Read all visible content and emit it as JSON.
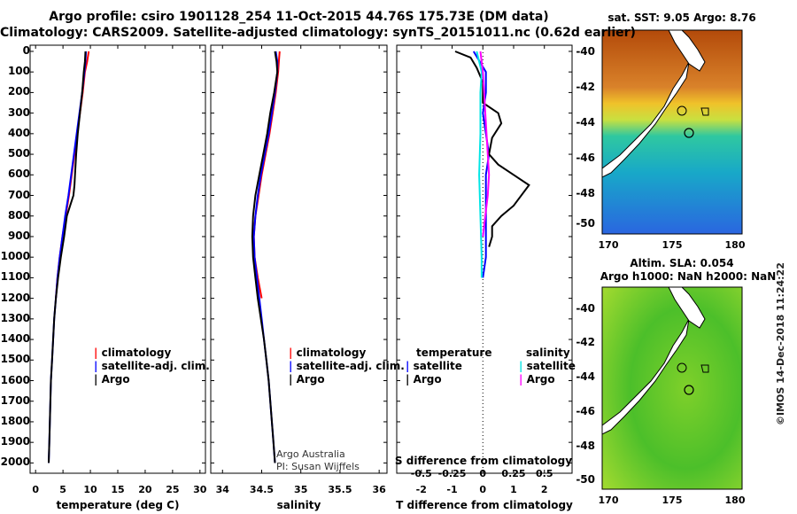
{
  "title": {
    "line1": "Argo profile: csiro 1901128_254 11-Oct-2015 44.76S 175.73E (DM data)",
    "line2": "Climatology: CARS2009. Satellite-adjusted climatology: synTS_20151011.nc (0.62d earlier)"
  },
  "colors": {
    "climatology": "#ff0000",
    "satellite": "#0000ff",
    "argo": "#000000",
    "sal_satellite": "#00e5e5",
    "sal_argo": "#ff00ff"
  },
  "depth_ticks": [
    0,
    100,
    200,
    300,
    400,
    500,
    600,
    700,
    800,
    900,
    1000,
    1100,
    1200,
    1300,
    1400,
    1500,
    1600,
    1700,
    1800,
    1900,
    2000
  ],
  "chart_data": [
    {
      "type": "line",
      "xlabel": "temperature (deg C)",
      "xticks": [
        0,
        5,
        10,
        15,
        20,
        25,
        30
      ],
      "xlim": [
        -1,
        31
      ],
      "ylim": [
        2050,
        0
      ],
      "legend": [
        "climatology",
        "satellite-adj. clim.",
        "Argo"
      ],
      "series": [
        {
          "name": "climatology",
          "points": [
            [
              9.7,
              0
            ],
            [
              9.4,
              50
            ],
            [
              9.0,
              100
            ],
            [
              8.6,
              200
            ],
            [
              8.1,
              300
            ],
            [
              7.6,
              400
            ],
            [
              7.1,
              500
            ],
            [
              6.6,
              600
            ],
            [
              6.1,
              700
            ],
            [
              5.5,
              800
            ],
            [
              4.9,
              900
            ],
            [
              4.4,
              1000
            ],
            [
              4.0,
              1100
            ],
            [
              3.7,
              1200
            ]
          ]
        },
        {
          "name": "satellite-adj. clim.",
          "points": [
            [
              9.2,
              0
            ],
            [
              9.1,
              50
            ],
            [
              8.9,
              100
            ],
            [
              8.5,
              200
            ],
            [
              8.0,
              300
            ],
            [
              7.5,
              400
            ],
            [
              7.0,
              500
            ],
            [
              6.5,
              600
            ],
            [
              6.0,
              700
            ],
            [
              5.4,
              800
            ],
            [
              4.9,
              900
            ],
            [
              4.4,
              1000
            ],
            [
              4.0,
              1100
            ],
            [
              3.7,
              1200
            ],
            [
              3.4,
              1300
            ],
            [
              3.2,
              1400
            ],
            [
              3.0,
              1500
            ],
            [
              2.8,
              1600
            ],
            [
              2.7,
              1700
            ],
            [
              2.6,
              1800
            ],
            [
              2.5,
              1900
            ],
            [
              2.4,
              2000
            ]
          ]
        },
        {
          "name": "Argo",
          "points": [
            [
              9.1,
              0
            ],
            [
              9.0,
              50
            ],
            [
              8.8,
              100
            ],
            [
              8.5,
              200
            ],
            [
              8.1,
              300
            ],
            [
              7.7,
              400
            ],
            [
              7.4,
              500
            ],
            [
              7.2,
              600
            ],
            [
              7.1,
              650
            ],
            [
              6.9,
              700
            ],
            [
              6.3,
              750
            ],
            [
              5.7,
              800
            ],
            [
              5.2,
              900
            ],
            [
              4.6,
              1000
            ],
            [
              4.1,
              1100
            ],
            [
              3.7,
              1200
            ],
            [
              3.4,
              1300
            ],
            [
              3.2,
              1400
            ],
            [
              3.0,
              1500
            ],
            [
              2.8,
              1600
            ],
            [
              2.7,
              1700
            ],
            [
              2.6,
              1800
            ],
            [
              2.5,
              1900
            ],
            [
              2.4,
              2000
            ]
          ]
        }
      ]
    },
    {
      "type": "line",
      "xlabel": "salinity",
      "xticks": [
        34,
        34.5,
        35,
        35.5,
        36
      ],
      "xlim": [
        33.85,
        36.1
      ],
      "ylim": [
        2050,
        0
      ],
      "legend": [
        "climatology",
        "satellite-adj. clim.",
        "Argo"
      ],
      "credit": [
        "Argo Australia",
        "PI: Susan Wijffels"
      ],
      "series": [
        {
          "name": "climatology",
          "points": [
            [
              34.73,
              0
            ],
            [
              34.72,
              50
            ],
            [
              34.71,
              100
            ],
            [
              34.68,
              200
            ],
            [
              34.64,
              300
            ],
            [
              34.6,
              400
            ],
            [
              34.55,
              500
            ],
            [
              34.5,
              600
            ],
            [
              34.46,
              700
            ],
            [
              34.42,
              800
            ],
            [
              34.4,
              900
            ],
            [
              34.41,
              1000
            ],
            [
              34.45,
              1100
            ],
            [
              34.5,
              1200
            ]
          ]
        },
        {
          "name": "satellite-adj. clim.",
          "points": [
            [
              34.68,
              0
            ],
            [
              34.7,
              50
            ],
            [
              34.7,
              100
            ],
            [
              34.67,
              200
            ],
            [
              34.63,
              300
            ],
            [
              34.59,
              400
            ],
            [
              34.54,
              500
            ],
            [
              34.49,
              600
            ],
            [
              34.45,
              700
            ],
            [
              34.42,
              800
            ],
            [
              34.4,
              900
            ],
            [
              34.41,
              1000
            ],
            [
              34.44,
              1100
            ],
            [
              34.47,
              1200
            ],
            [
              34.5,
              1300
            ],
            [
              34.53,
              1400
            ],
            [
              34.56,
              1500
            ],
            [
              34.59,
              1600
            ],
            [
              34.61,
              1700
            ],
            [
              34.63,
              1800
            ],
            [
              34.65,
              1900
            ],
            [
              34.67,
              2000
            ]
          ]
        },
        {
          "name": "Argo",
          "points": [
            [
              34.67,
              0
            ],
            [
              34.69,
              50
            ],
            [
              34.7,
              100
            ],
            [
              34.66,
              200
            ],
            [
              34.61,
              300
            ],
            [
              34.57,
              400
            ],
            [
              34.52,
              500
            ],
            [
              34.47,
              600
            ],
            [
              34.42,
              700
            ],
            [
              34.39,
              800
            ],
            [
              34.38,
              900
            ],
            [
              34.39,
              1000
            ],
            [
              34.42,
              1100
            ],
            [
              34.45,
              1200
            ],
            [
              34.49,
              1300
            ],
            [
              34.53,
              1400
            ],
            [
              34.56,
              1500
            ],
            [
              34.59,
              1600
            ],
            [
              34.61,
              1700
            ],
            [
              34.63,
              1800
            ],
            [
              34.65,
              1900
            ],
            [
              34.67,
              2000
            ]
          ]
        }
      ]
    },
    {
      "type": "line",
      "xlabel": "T difference from climatology",
      "xlabel_top": "S difference from climatology",
      "xticks": [
        -2,
        -1,
        0,
        1,
        2
      ],
      "xticks_top": [
        "-0.5",
        "-0.25",
        "0",
        "0.25",
        "0.5"
      ],
      "xlim": [
        -2.8,
        2.9
      ],
      "ylim": [
        2050,
        0
      ],
      "legend_left_title": "temperature",
      "legend_right_title": "salinity",
      "legend_left": [
        "satellite",
        "Argo"
      ],
      "legend_right": [
        "satellite",
        "Argo"
      ],
      "series": [
        {
          "name": "T satellite",
          "points": [
            [
              -0.3,
              0
            ],
            [
              -0.1,
              50
            ],
            [
              0.1,
              100
            ],
            [
              0.1,
              200
            ],
            [
              0.0,
              300
            ],
            [
              0.1,
              400
            ],
            [
              0.2,
              500
            ],
            [
              0.1,
              600
            ],
            [
              0.1,
              700
            ],
            [
              0.1,
              800
            ],
            [
              0.1,
              900
            ],
            [
              0.1,
              1000
            ],
            [
              0.0,
              1100
            ]
          ]
        },
        {
          "name": "T Argo",
          "points": [
            [
              -0.9,
              0
            ],
            [
              -0.4,
              30
            ],
            [
              -0.2,
              80
            ],
            [
              0.0,
              150
            ],
            [
              0.0,
              250
            ],
            [
              0.5,
              300
            ],
            [
              0.6,
              350
            ],
            [
              0.3,
              420
            ],
            [
              0.2,
              500
            ],
            [
              0.5,
              550
            ],
            [
              1.0,
              600
            ],
            [
              1.5,
              650
            ],
            [
              1.0,
              750
            ],
            [
              0.6,
              800
            ],
            [
              0.3,
              850
            ],
            [
              0.3,
              900
            ],
            [
              0.2,
              950
            ]
          ]
        },
        {
          "name": "S satellite",
          "points": [
            [
              -0.05,
              0
            ],
            [
              -0.01,
              100
            ],
            [
              -0.02,
              200
            ],
            [
              -0.02,
              400
            ],
            [
              -0.03,
              600
            ],
            [
              -0.02,
              800
            ],
            [
              -0.01,
              1000
            ],
            [
              -0.01,
              1100
            ]
          ]
        },
        {
          "name": "S Argo",
          "points": [
            [
              -0.02,
              0
            ],
            [
              0.0,
              100
            ],
            [
              0.01,
              200
            ],
            [
              0.02,
              300
            ],
            [
              0.03,
              400
            ],
            [
              0.04,
              500
            ],
            [
              0.05,
              600
            ],
            [
              0.04,
              700
            ],
            [
              0.02,
              800
            ],
            [
              0.0,
              900
            ]
          ]
        }
      ]
    }
  ],
  "maps": {
    "sst": {
      "title": "sat. SST: 9.05 Argo: 8.76",
      "lat_ticks": [
        "-40",
        "-42",
        "-44",
        "-46",
        "-48",
        "-50"
      ],
      "lon_ticks": [
        "170",
        "175",
        "180"
      ]
    },
    "sla": {
      "title1": "Altim. SLA: 0.054",
      "title2": "Argo h1000: NaN h2000: NaN",
      "lat_ticks": [
        "-40",
        "-42",
        "-44",
        "-46",
        "-48",
        "-50"
      ],
      "lon_ticks": [
        "170",
        "175",
        "180"
      ]
    }
  },
  "stamp": "©IMOS 14-Dec-2018 11:24:22"
}
